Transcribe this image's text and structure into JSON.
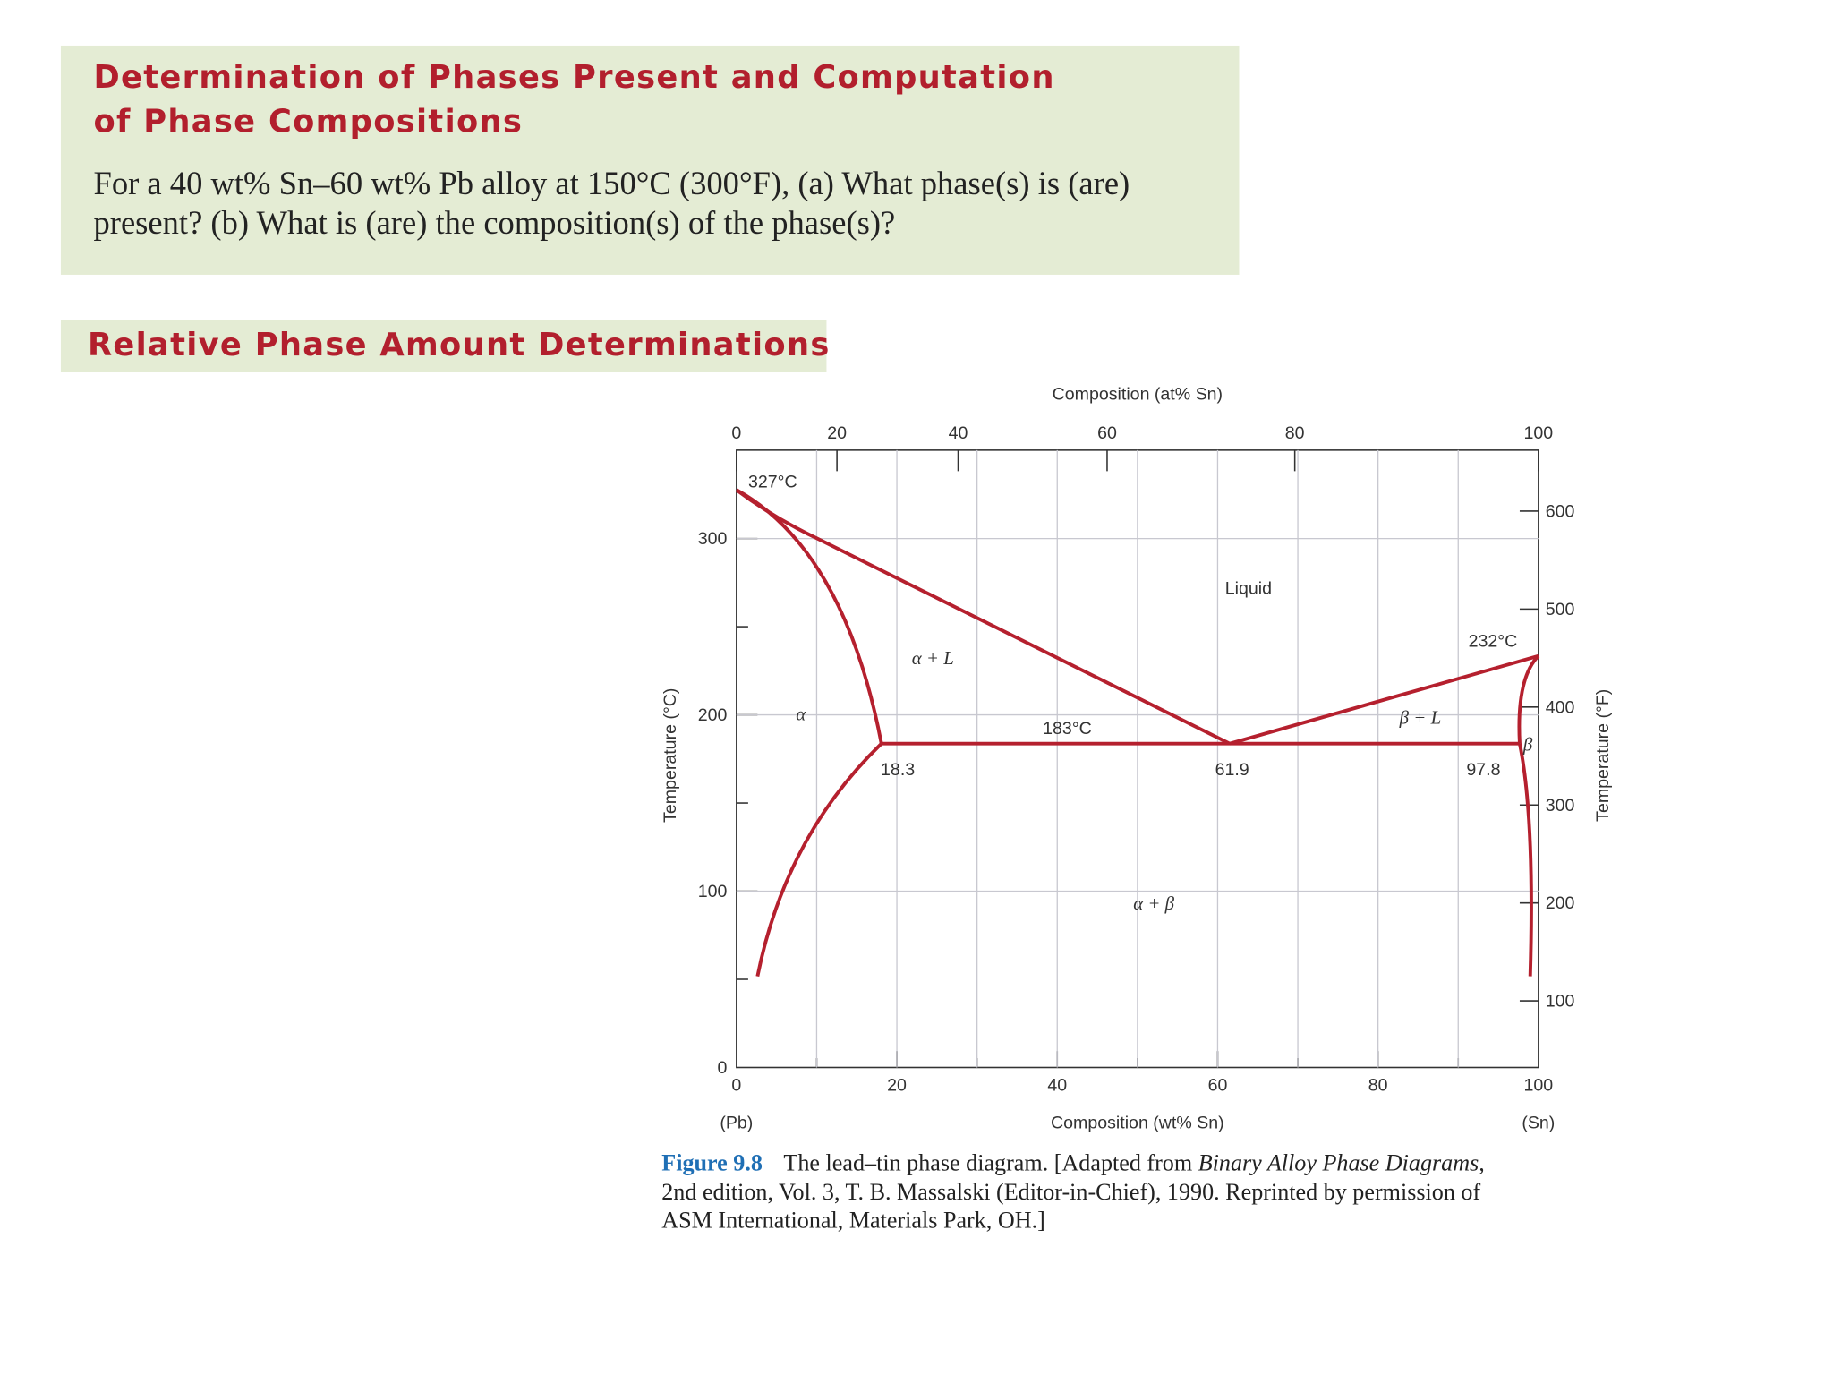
{
  "header": {
    "title_lines": [
      "Determination of Phases Present and Computation",
      "of Phase Compositions"
    ],
    "body_lines": [
      "For a 40 wt% Sn–60 wt% Pb alloy at 150°C (300°F), (a) What phase(s) is (are)",
      "present? (b) What is (are) the composition(s) of the phase(s)?"
    ]
  },
  "section": {
    "title": "Relative Phase Amount Determinations"
  },
  "diagram": {
    "top_axis_label": "Composition (at% Sn)",
    "bottom_axis_label": "Composition (wt% Sn)",
    "left_axis_label": "Temperature (°C)",
    "right_axis_label": "Temperature (°F)",
    "left_end_label": "(Pb)",
    "right_end_label": "(Sn)",
    "bottom_ticks": [
      "0",
      "20",
      "40",
      "60",
      "80",
      "100"
    ],
    "top_ticks": [
      "0",
      "20",
      "40",
      "60",
      "80",
      "100"
    ],
    "left_ticks": [
      "0",
      "100",
      "200",
      "300"
    ],
    "right_ticks": [
      "100",
      "200",
      "300",
      "400",
      "500",
      "600"
    ],
    "regions": [
      "Liquid",
      "α + L",
      "α",
      "β + L",
      "β",
      "α + β"
    ],
    "annotations": [
      "327°C",
      "232°C",
      "183°C",
      "18.3",
      "61.9",
      "97.8"
    ]
  },
  "caption": {
    "label": "Figure 9.8",
    "line1_a": "The lead–tin phase diagram. [Adapted from ",
    "line1_italic": "Binary Alloy Phase Diagrams,",
    "line2": "2nd edition, Vol. 3, T. B. Massalski (Editor-in-Chief), 1990. Reprinted by permission of",
    "line3": "ASM International, Materials Park, OH.]"
  }
}
